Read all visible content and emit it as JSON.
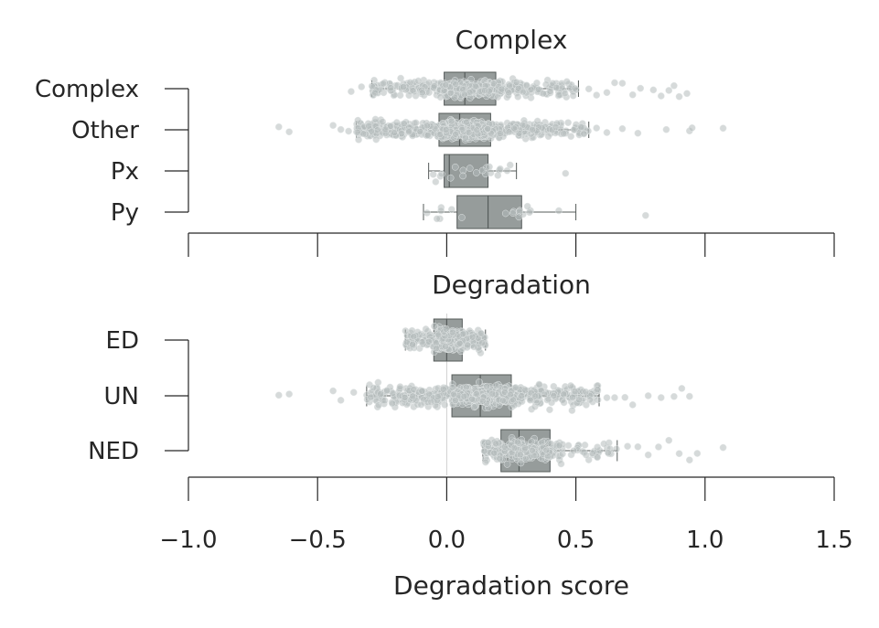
{
  "chart_data": [
    {
      "type": "box",
      "title": "Complex",
      "categories": [
        "Complex",
        "Other",
        "Px",
        "Py"
      ],
      "boxes": [
        {
          "category": "Complex",
          "whisker_low": -0.29,
          "q1": -0.01,
          "median": 0.07,
          "q3": 0.19,
          "whisker_high": 0.51,
          "outliers": [
            -0.37,
            -0.33,
            0.55,
            0.58,
            0.62,
            0.65,
            0.68,
            0.72,
            0.75,
            0.8,
            0.83,
            0.86,
            0.88,
            0.9,
            0.93
          ],
          "n_points": 420
        },
        {
          "category": "Other",
          "whisker_low": -0.35,
          "q1": -0.03,
          "median": 0.05,
          "q3": 0.17,
          "whisker_high": 0.55,
          "outliers": [
            -0.65,
            -0.61,
            -0.44,
            -0.41,
            -0.38,
            0.58,
            0.62,
            0.68,
            0.74,
            0.85,
            0.94,
            0.95,
            1.07
          ],
          "n_points": 800
        },
        {
          "category": "Px",
          "whisker_low": -0.07,
          "q1": -0.01,
          "median": 0.01,
          "q3": 0.16,
          "whisker_high": 0.27,
          "outliers": [
            0.46
          ],
          "n_points": 20
        },
        {
          "category": "Py",
          "whisker_low": -0.09,
          "q1": 0.04,
          "median": 0.16,
          "q3": 0.29,
          "whisker_high": 0.5,
          "outliers": [
            0.77
          ],
          "n_points": 18
        }
      ]
    },
    {
      "type": "box",
      "title": "Degradation",
      "categories": [
        "ED",
        "UN",
        "NED"
      ],
      "xlabel": "Degradation score",
      "xticks": [
        "−1.0",
        "−0.5",
        "0.0",
        "0.5",
        "1.0",
        "1.5"
      ],
      "xlim": [
        -1.0,
        1.5
      ],
      "boxes": [
        {
          "category": "ED",
          "whisker_low": -0.16,
          "q1": -0.05,
          "median": 0.0,
          "q3": 0.06,
          "whisker_high": 0.15,
          "outliers": [],
          "n_points": 300
        },
        {
          "category": "UN",
          "whisker_low": -0.31,
          "q1": 0.02,
          "median": 0.13,
          "q3": 0.25,
          "whisker_high": 0.59,
          "outliers": [
            -0.65,
            -0.61,
            -0.44,
            -0.41,
            -0.36,
            0.62,
            0.65,
            0.69,
            0.72,
            0.78,
            0.83,
            0.88,
            0.91,
            0.94
          ],
          "n_points": 700
        },
        {
          "category": "NED",
          "whisker_low": 0.14,
          "q1": 0.21,
          "median": 0.28,
          "q3": 0.4,
          "whisker_high": 0.66,
          "outliers": [
            0.7,
            0.74,
            0.78,
            0.82,
            0.86,
            0.9,
            0.94,
            0.97,
            1.07
          ],
          "n_points": 250
        }
      ]
    }
  ],
  "colors": {
    "box": "#969c9b",
    "points": "#b4bcbb",
    "lines": "#555b5a",
    "text": "#262626"
  }
}
